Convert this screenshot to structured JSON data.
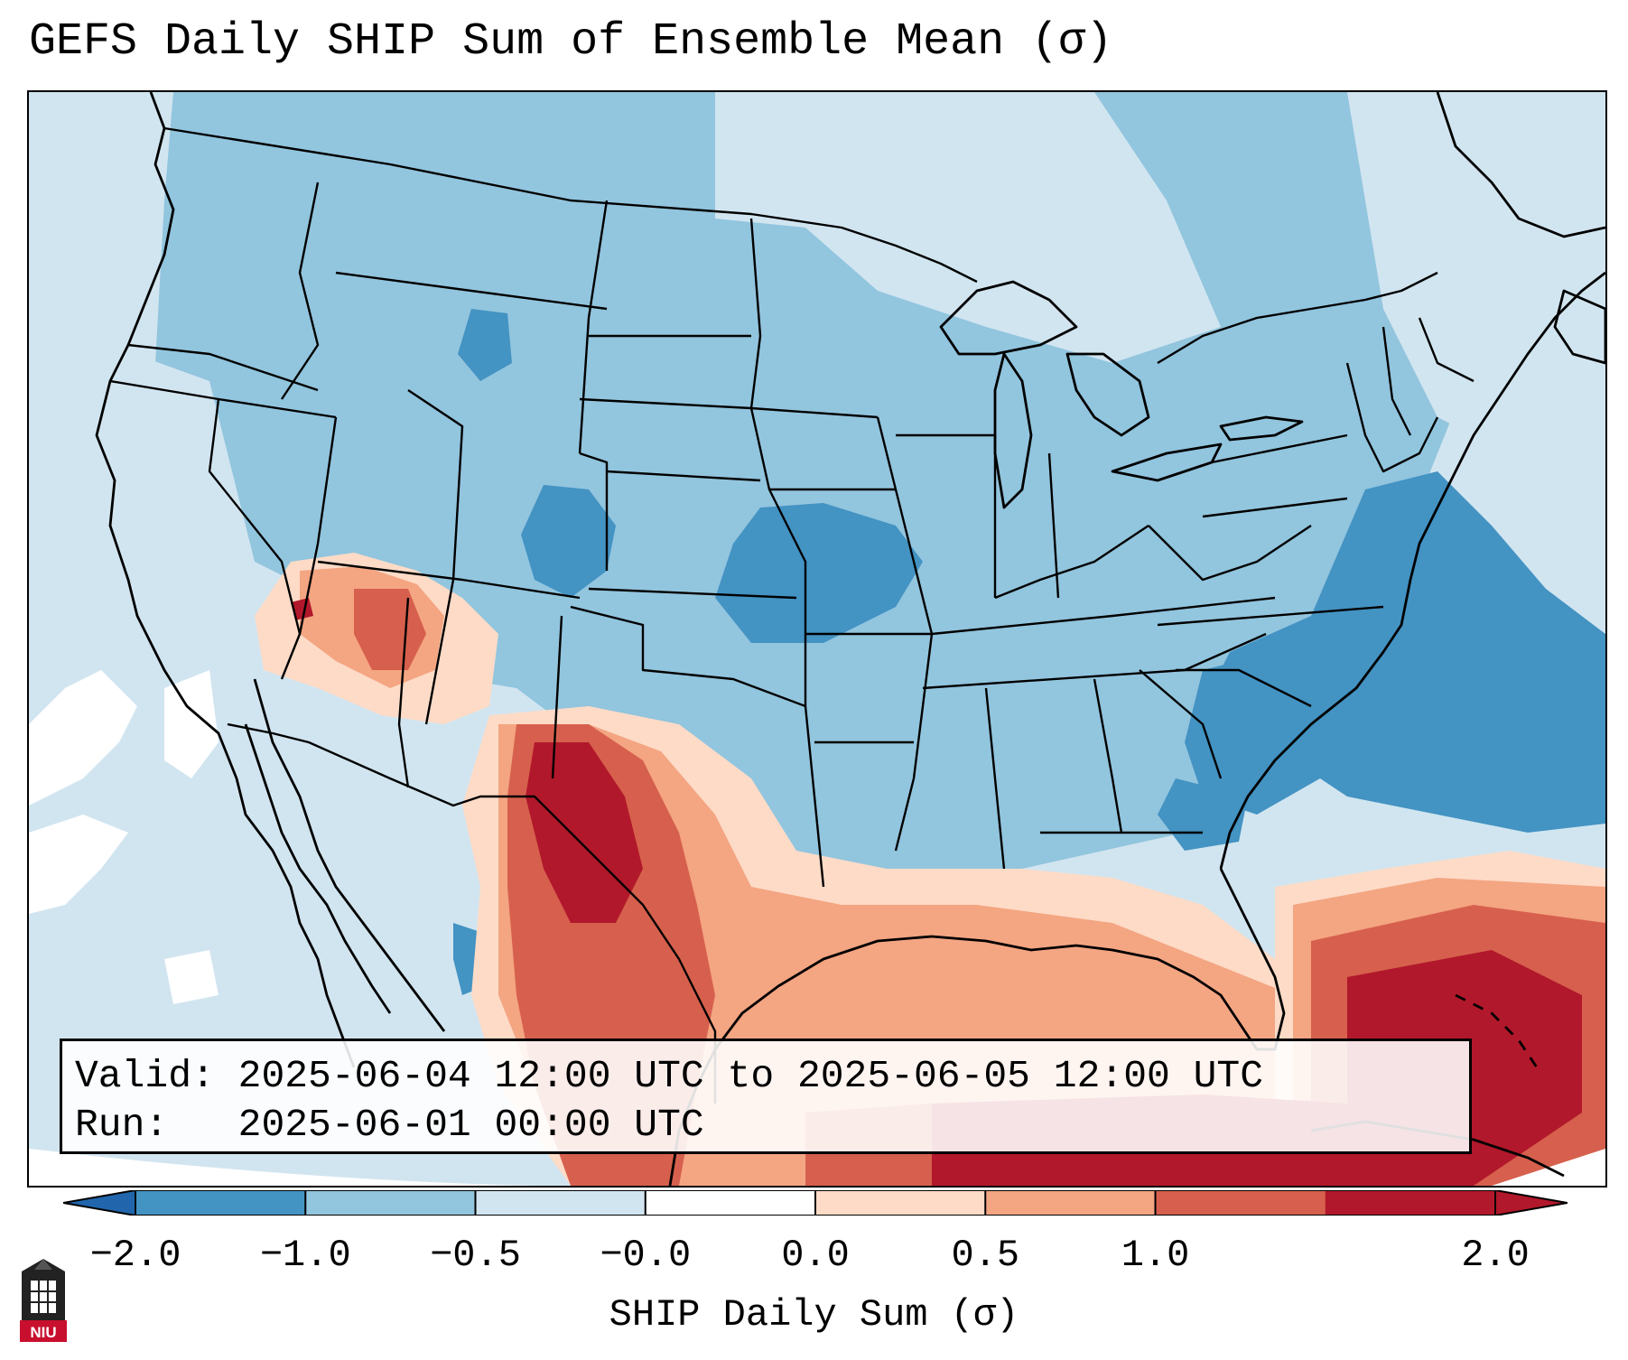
{
  "title": "GEFS Daily SHIP Sum of Ensemble Mean (σ)",
  "info": {
    "valid_label": "Valid:",
    "valid_value": "2025-06-04 12:00 UTC to 2025-06-05 12:00 UTC",
    "run_label": "Run:",
    "run_value": "2025-06-01 00:00 UTC"
  },
  "colorbar": {
    "label": "SHIP Daily Sum (σ)",
    "ticks": [
      "−2.0",
      "−1.0",
      "−0.5",
      "−0.0",
      "0.0",
      "0.5",
      "1.0",
      "2.0"
    ],
    "colors": [
      "#4393c3",
      "#92c5de",
      "#d1e5f0",
      "#ffffff",
      "#fddbc7",
      "#f4a582",
      "#d6604d",
      "#b2182b"
    ],
    "under_color": "#2166ac",
    "over_color": "#b2182b"
  },
  "map": {
    "ocean_color": "#d1e5f0",
    "border_color": "#000000"
  },
  "logo": {
    "text": "NIU",
    "color": "#c8102e"
  }
}
